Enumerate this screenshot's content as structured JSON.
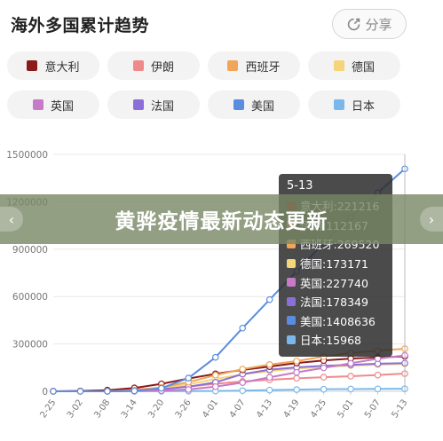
{
  "header": {
    "title": "海外多国累计趋势",
    "share_label": "分享"
  },
  "banner": {
    "text": "黄骅疫情最新动态更新"
  },
  "legend": [
    {
      "name": "意大利",
      "color": "#8b1a1a"
    },
    {
      "name": "伊朗",
      "color": "#ef8a8a"
    },
    {
      "name": "西班牙",
      "color": "#f0a55a"
    },
    {
      "name": "德国",
      "color": "#f5d57a"
    },
    {
      "name": "英国",
      "color": "#c77ac7"
    },
    {
      "name": "法国",
      "color": "#8a6fd8"
    },
    {
      "name": "美国",
      "color": "#5a8de0"
    },
    {
      "name": "日本",
      "color": "#7ab8ec"
    }
  ],
  "tooltip": {
    "title": "5-13",
    "rows": [
      {
        "label": "意大利:221216",
        "color": "#8b1a1a"
      },
      {
        "label": "伊朗:112167",
        "color": "#ef8a8a"
      },
      {
        "label": "西班牙:269520",
        "color": "#f0a55a"
      },
      {
        "label": "德国:173171",
        "color": "#f5d57a"
      },
      {
        "label": "英国:227740",
        "color": "#c77ac7"
      },
      {
        "label": "法国:178349",
        "color": "#8a6fd8"
      },
      {
        "label": "美国:1408636",
        "color": "#5a8de0"
      },
      {
        "label": "日本:15968",
        "color": "#7ab8ec"
      }
    ]
  },
  "chart_data": {
    "type": "line",
    "title": "海外多国累计趋势",
    "ylim": [
      0,
      1500000
    ],
    "yticks": [
      0,
      300000,
      600000,
      900000,
      1200000,
      1500000
    ],
    "categories": [
      "2-25",
      "3-02",
      "3-08",
      "3-14",
      "3-20",
      "3-26",
      "4-01",
      "4-07",
      "4-13",
      "4-19",
      "4-25",
      "5-01",
      "5-07",
      "5-13"
    ],
    "legend_position": "top",
    "series": [
      {
        "name": "意大利",
        "color": "#8b1a1a",
        "values": [
          322,
          2036,
          7375,
          21157,
          47021,
          80589,
          110574,
          135586,
          156363,
          178972,
          195351,
          207428,
          214457,
          221216
        ]
      },
      {
        "name": "伊朗",
        "color": "#ef8a8a",
        "values": [
          95,
          1501,
          6566,
          12729,
          19644,
          29406,
          47593,
          62589,
          73303,
          82211,
          89328,
          95646,
          103135,
          112167
        ]
      },
      {
        "name": "西班牙",
        "color": "#f0a55a",
        "values": [
          13,
          120,
          673,
          6391,
          24926,
          57786,
          102136,
          140510,
          169496,
          191726,
          219764,
          242988,
          256855,
          269520
        ]
      },
      {
        "name": "德国",
        "color": "#f5d57a",
        "values": [
          16,
          150,
          1040,
          4585,
          19848,
          43938,
          77872,
          107663,
          127854,
          143724,
          154175,
          162496,
          168162,
          173171
        ]
      },
      {
        "name": "英国",
        "color": "#c77ac7",
        "values": [
          13,
          36,
          273,
          1144,
          3983,
          11658,
          29474,
          55242,
          88621,
          120067,
          148377,
          177454,
          206715,
          227740
        ]
      },
      {
        "name": "法国",
        "color": "#8a6fd8",
        "values": [
          14,
          130,
          1126,
          4499,
          12612,
          29155,
          56989,
          109069,
          136779,
          151793,
          161488,
          167346,
          174791,
          178349
        ]
      },
      {
        "name": "美国",
        "color": "#5a8de0",
        "values": [
          57,
          100,
          541,
          2727,
          19383,
          83836,
          215417,
          400335,
          580619,
          759086,
          938154,
          1103461,
          1257023,
          1408636
        ]
      },
      {
        "name": "日本",
        "color": "#7ab8ec",
        "values": [
          164,
          254,
          455,
          780,
          963,
          1307,
          2178,
          4257,
          7645,
          10751,
          13182,
          14281,
          15354,
          15968
        ]
      }
    ]
  }
}
